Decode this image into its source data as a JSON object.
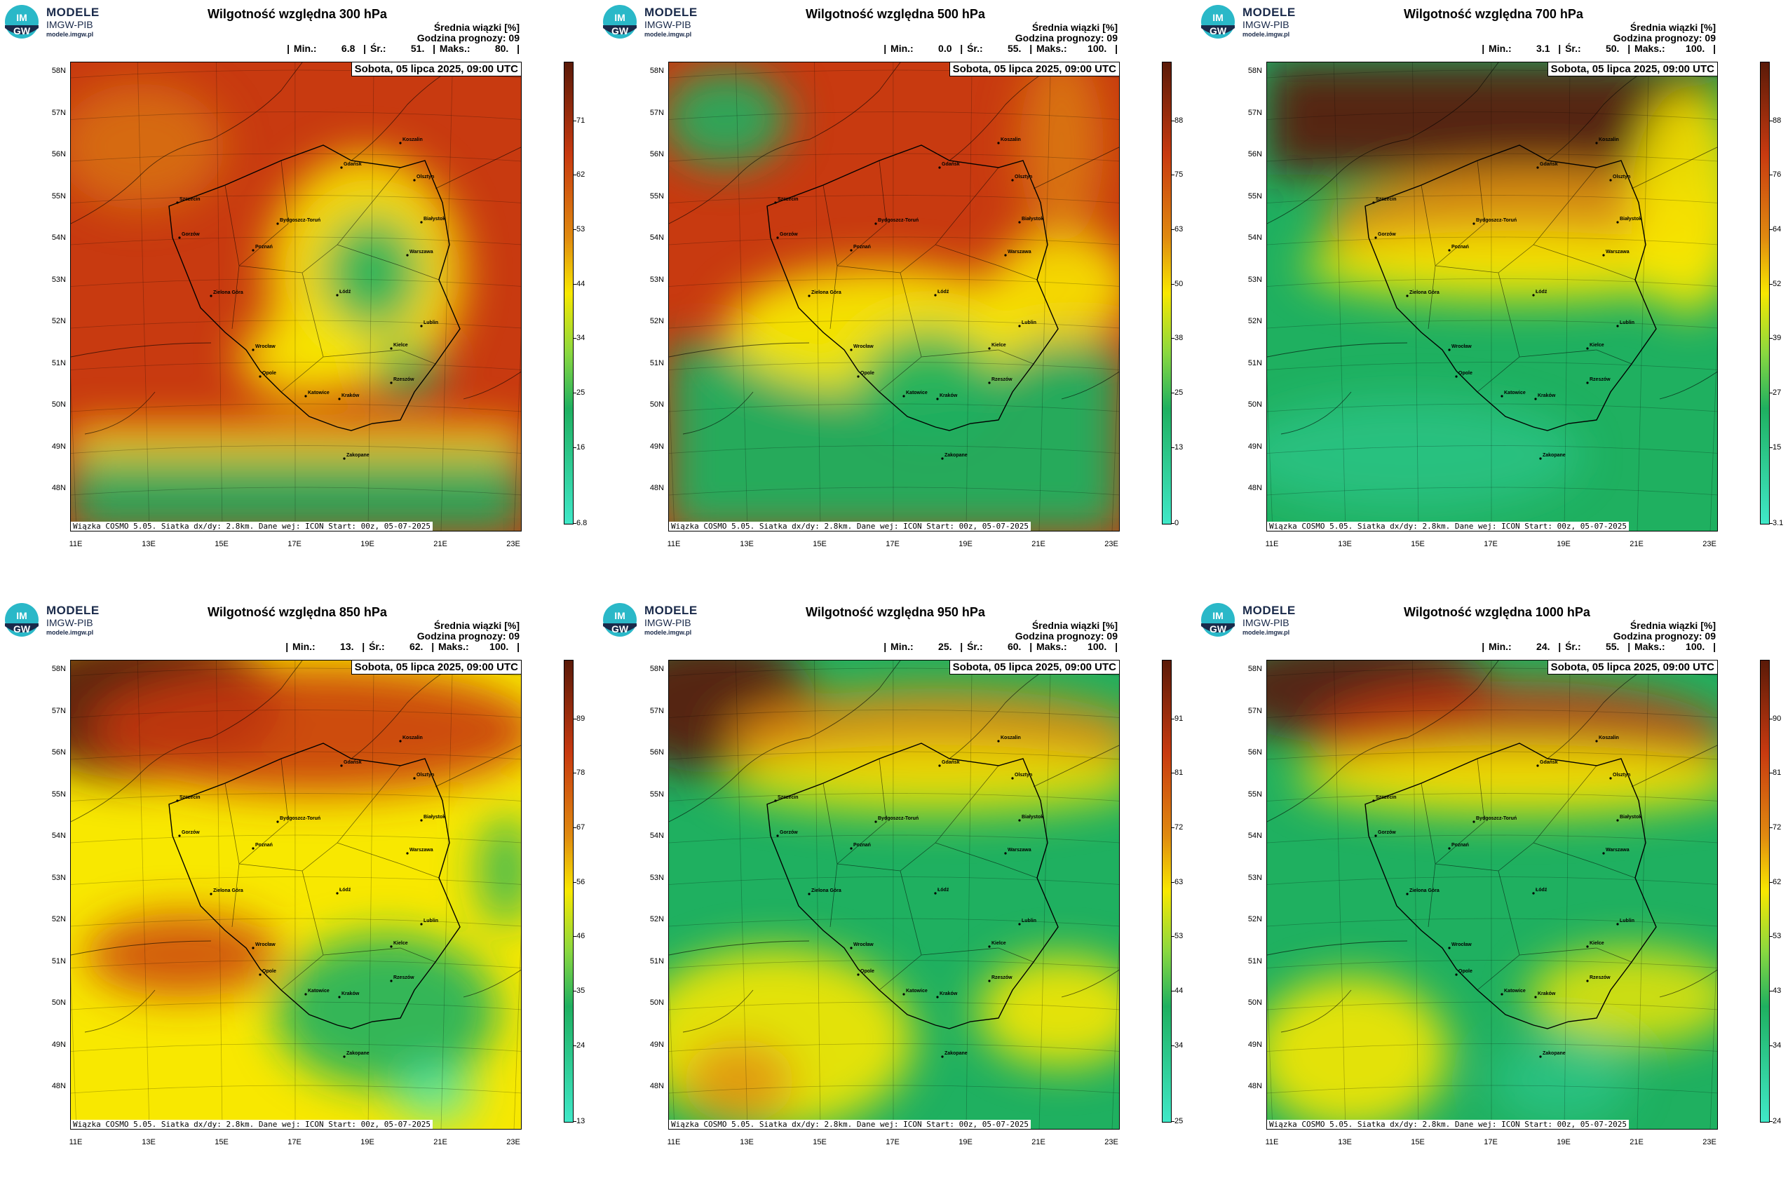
{
  "logo": {
    "line1": "MODELE",
    "line2": "IMGW-PIB",
    "line3": "modele.imgw.pl",
    "mark_text_top": "IM",
    "mark_text_bottom": "GW"
  },
  "common": {
    "info_line1": "Średnia wiązki [%]",
    "info_line2": "Godzina prognozy: 09",
    "date": "Sobota, 05 lipca 2025, 09:00 UTC",
    "footer": "Wiązka COSMO 5.05. Siatka dx/dy: 2.8km. Dane wej: ICON Start: 00z, 05-07-2025",
    "lat_labels": [
      "58N",
      "57N",
      "56N",
      "55N",
      "54N",
      "53N",
      "52N",
      "51N",
      "50N",
      "49N",
      "48N"
    ],
    "lon_labels": [
      "11E",
      "13E",
      "15E",
      "17E",
      "19E",
      "21E",
      "23E"
    ],
    "cities": [
      "Gdańsk",
      "Koszalin",
      "Olsztyn",
      "Szczecin",
      "Białystok",
      "Bydgoszcz-Toruń",
      "Gorzów",
      "Poznań",
      "Warszawa",
      "Zielona Góra",
      "Łódź",
      "Lublin",
      "Wrocław",
      "Kielce",
      "Opole",
      "Rzeszów",
      "Katowice",
      "Kraków",
      "Zakopane"
    ]
  },
  "panels": [
    {
      "title": "Wilgotność względna 300 hPa",
      "stats": "| Min.:      6.8  | Śr.:      51.  | Maks.:      80.  |",
      "min": 6.8,
      "mean": 51,
      "max": 80,
      "colorbar_ticks": [
        "71",
        "62",
        "53",
        "44",
        "34",
        "25",
        "16",
        "6.8"
      ]
    },
    {
      "title": "Wilgotność względna 500 hPa",
      "stats": "| Min.:      0.0  | Śr.:      55.  | Maks.:     100.  |",
      "min": 0.0,
      "mean": 55,
      "max": 100,
      "colorbar_ticks": [
        "88",
        "75",
        "63",
        "50",
        "38",
        "25",
        "13",
        "0"
      ]
    },
    {
      "title": "Wilgotność względna 700 hPa",
      "stats": "| Min.:      3.1  | Śr.:      50.  | Maks.:     100.  |",
      "min": 3.1,
      "mean": 50,
      "max": 100,
      "colorbar_ticks": [
        "88",
        "76",
        "64",
        "52",
        "39",
        "27",
        "15",
        "3.1"
      ]
    },
    {
      "title": "Wilgotność względna 850 hPa",
      "stats": "| Min.:      13.  | Śr.:      62.  | Maks.:     100.  |",
      "min": 13,
      "mean": 62,
      "max": 100,
      "colorbar_ticks": [
        "89",
        "78",
        "67",
        "56",
        "46",
        "35",
        "24",
        "13"
      ]
    },
    {
      "title": "Wilgotność względna 950 hPa",
      "stats": "| Min.:      25.  | Śr.:      60.  | Maks.:     100.  |",
      "min": 25,
      "mean": 60,
      "max": 100,
      "colorbar_ticks": [
        "91",
        "81",
        "72",
        "63",
        "53",
        "44",
        "34",
        "25"
      ]
    },
    {
      "title": "Wilgotność względna 1000 hPa",
      "stats": "| Min.:      24.  | Śr.:      55.  | Maks.:     100.  |",
      "min": 24,
      "mean": 55,
      "max": 100,
      "colorbar_ticks": [
        "90",
        "81",
        "72",
        "62",
        "53",
        "43",
        "34",
        "24"
      ]
    }
  ],
  "colors": {
    "dry": "#40e8c8",
    "green": "#1fb060",
    "yellow": "#f8e800",
    "orange": "#e08a10",
    "red": "#c83a10",
    "brown": "#5a1a08"
  }
}
